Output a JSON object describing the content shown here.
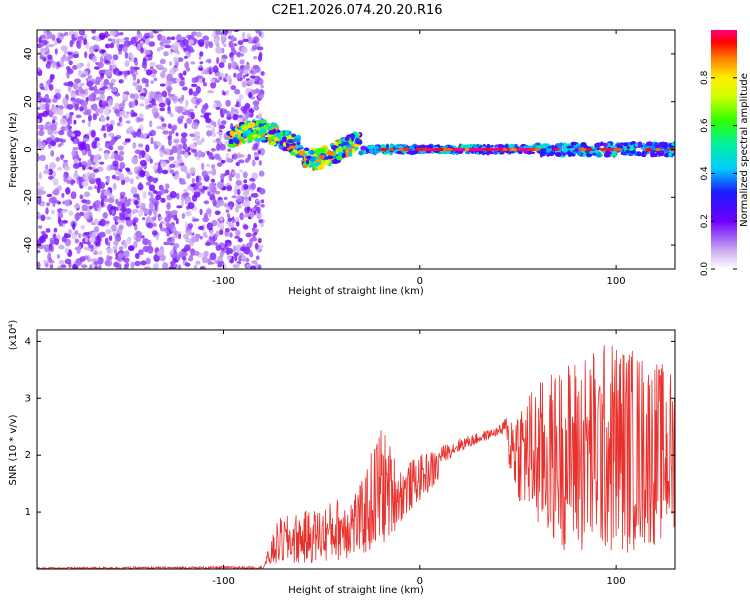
{
  "title": "C2E1.2026.074.20.20.R16",
  "chart_data": [
    {
      "type": "heatmap",
      "xlabel": "Height of straight line (km)",
      "ylabel": "Frequency (Hz)",
      "xlim": [
        -195,
        130
      ],
      "ylim": [
        -50,
        50
      ],
      "xticks": [
        {
          "v": -100,
          "label": "-100"
        },
        {
          "v": 0,
          "label": "0"
        },
        {
          "v": 100,
          "label": "100"
        }
      ],
      "yticks": [
        {
          "v": -40,
          "label": "-40"
        },
        {
          "v": -20,
          "label": "-20"
        },
        {
          "v": 0,
          "label": "0"
        },
        {
          "v": 20,
          "label": "20"
        },
        {
          "v": 40,
          "label": "40"
        }
      ],
      "colorbar": {
        "label": "Normalized spectral amplitude",
        "range": [
          0,
          1
        ],
        "ticks": [
          {
            "v": 0.0,
            "label": "0.0"
          },
          {
            "v": 0.2,
            "label": "0.2"
          },
          {
            "v": 0.4,
            "label": "0.4"
          },
          {
            "v": 0.6,
            "label": "0.6"
          },
          {
            "v": 0.8,
            "label": "0.8"
          }
        ]
      },
      "regions": [
        {
          "name": "noise",
          "x": [
            -195,
            -80
          ],
          "y": [
            -50,
            50
          ],
          "amplitude_range": [
            0.05,
            0.2
          ]
        },
        {
          "name": "signal-band-early",
          "x": [
            -97,
            -30
          ],
          "y": [
            -8,
            10
          ],
          "amplitude_range": [
            0.2,
            0.9
          ]
        },
        {
          "name": "carrier-line",
          "x": [
            -30,
            130
          ],
          "y": [
            -3,
            3
          ],
          "center_frequency": 0,
          "peak_amplitude": 1.0
        }
      ]
    },
    {
      "type": "line",
      "xlabel": "Height of straight line (km)",
      "ylabel": "SNR (10 * v/v)",
      "y_multiplier": "(x10⁴)",
      "xlim": [
        -195,
        130
      ],
      "ylim": [
        0,
        4.2
      ],
      "xticks": [
        {
          "v": -100,
          "label": "-100"
        },
        {
          "v": 0,
          "label": "0"
        },
        {
          "v": 100,
          "label": "100"
        }
      ],
      "yticks": [
        {
          "v": 1,
          "label": "1"
        },
        {
          "v": 2,
          "label": "2"
        },
        {
          "v": 3,
          "label": "3"
        },
        {
          "v": 4,
          "label": "4"
        }
      ],
      "series": [
        {
          "name": "SNR",
          "color": "#e8302c",
          "envelope": [
            {
              "x": -195,
              "low": 0.0,
              "high": 0.03
            },
            {
              "x": -80,
              "low": 0.0,
              "high": 0.05
            },
            {
              "x": -72,
              "low": 0.05,
              "high": 0.9
            },
            {
              "x": -50,
              "low": 0.1,
              "high": 1.1
            },
            {
              "x": -30,
              "low": 0.2,
              "high": 1.5
            },
            {
              "x": -20,
              "low": 0.3,
              "high": 2.6
            },
            {
              "x": -10,
              "low": 0.8,
              "high": 1.8
            },
            {
              "x": 0,
              "low": 1.2,
              "high": 2.0
            },
            {
              "x": 20,
              "low": 1.8,
              "high": 2.3
            },
            {
              "x": 40,
              "low": 2.2,
              "high": 2.5
            },
            {
              "x": 50,
              "low": 1.2,
              "high": 3.0
            },
            {
              "x": 60,
              "low": 0.6,
              "high": 3.3
            },
            {
              "x": 80,
              "low": 0.2,
              "high": 3.8
            },
            {
              "x": 100,
              "low": 0.2,
              "high": 4.1
            },
            {
              "x": 130,
              "low": 0.5,
              "high": 3.5
            }
          ]
        }
      ]
    }
  ]
}
